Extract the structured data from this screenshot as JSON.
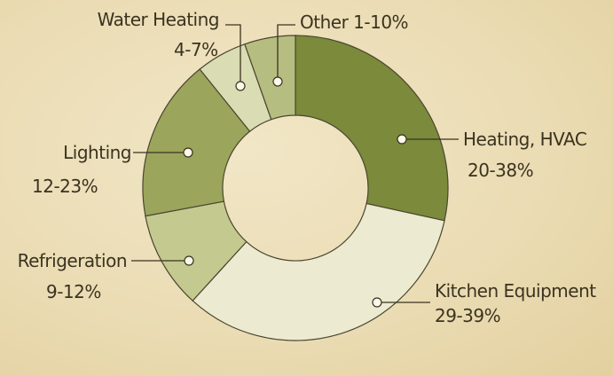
{
  "chart_data": {
    "type": "donut",
    "categories": [
      "Heating, HVAC",
      "Kitchen Equipment",
      "Refrigeration",
      "Lighting",
      "Water Heating",
      "Other"
    ],
    "low": [
      20,
      29,
      9,
      12,
      4,
      1
    ],
    "high": [
      38,
      39,
      12,
      23,
      7,
      10
    ],
    "value_labels": [
      "20-38%",
      "29-39%",
      "9-12%",
      "12-23%",
      "4-7%",
      "1-10%"
    ],
    "colors": [
      "#7b8a3b",
      "#ecead0",
      "#c4c98f",
      "#9ba55b",
      "#dadcb3",
      "#b6bd80"
    ]
  }
}
